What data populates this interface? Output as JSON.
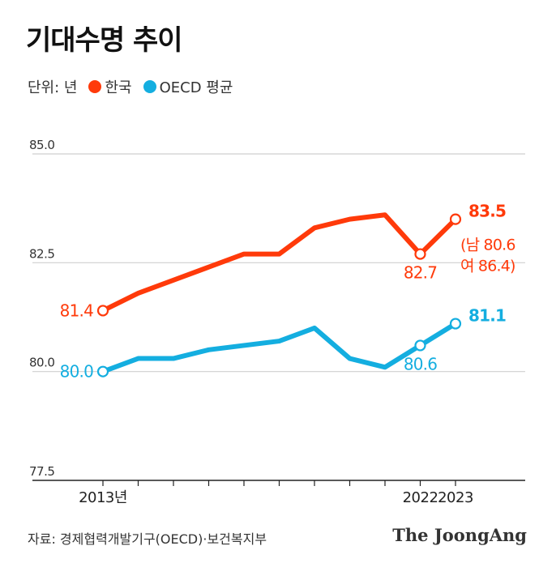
{
  "title": "기대수명 추이",
  "legend": {
    "unit_label": "단위: 년",
    "items": [
      {
        "label": "한국",
        "color": "#ff3a0a"
      },
      {
        "label": "OECD 평균",
        "color": "#14aee0"
      }
    ]
  },
  "chart_data": {
    "type": "line",
    "x": [
      2013,
      2014,
      2015,
      2016,
      2017,
      2018,
      2019,
      2020,
      2021,
      2022,
      2023
    ],
    "x_tick_labels": [
      {
        "x": 2013,
        "label": "2013년"
      },
      {
        "x": 2022,
        "label": "2022"
      },
      {
        "x": 2023,
        "label": "2023"
      }
    ],
    "ylim": [
      77.5,
      85.0
    ],
    "y_ticks": [
      {
        "value": 77.5,
        "label": "77.5"
      },
      {
        "value": 80.0,
        "label": "80.0"
      },
      {
        "value": 82.5,
        "label": "82.5"
      },
      {
        "value": 85.0,
        "label": "85.0"
      }
    ],
    "grid": true,
    "series": [
      {
        "name": "한국",
        "color": "#ff3a0a",
        "values": [
          81.4,
          81.8,
          82.1,
          82.4,
          82.7,
          82.7,
          83.3,
          83.5,
          83.6,
          82.7,
          83.5
        ]
      },
      {
        "name": "OECD 평균",
        "color": "#14aee0",
        "values": [
          80.0,
          80.3,
          80.3,
          80.5,
          80.6,
          80.7,
          81.0,
          80.3,
          80.1,
          80.6,
          81.1
        ]
      }
    ],
    "data_labels": [
      {
        "series": 0,
        "x": 2013,
        "text": "81.4",
        "bold": false
      },
      {
        "series": 0,
        "x": 2022,
        "text": "82.7",
        "bold": false
      },
      {
        "series": 0,
        "x": 2023,
        "text": "83.5",
        "bold": true
      },
      {
        "series": 1,
        "x": 2013,
        "text": "80.0",
        "bold": false
      },
      {
        "series": 1,
        "x": 2022,
        "text": "80.6",
        "bold": false
      },
      {
        "series": 1,
        "x": 2023,
        "text": "81.1",
        "bold": true
      }
    ],
    "annotation_lines": [
      "(남 80.6",
      "여 86.4)"
    ]
  },
  "source": "자료: 경제협력개발기구(OECD)·보건복지부",
  "brand": "The JoongAng"
}
